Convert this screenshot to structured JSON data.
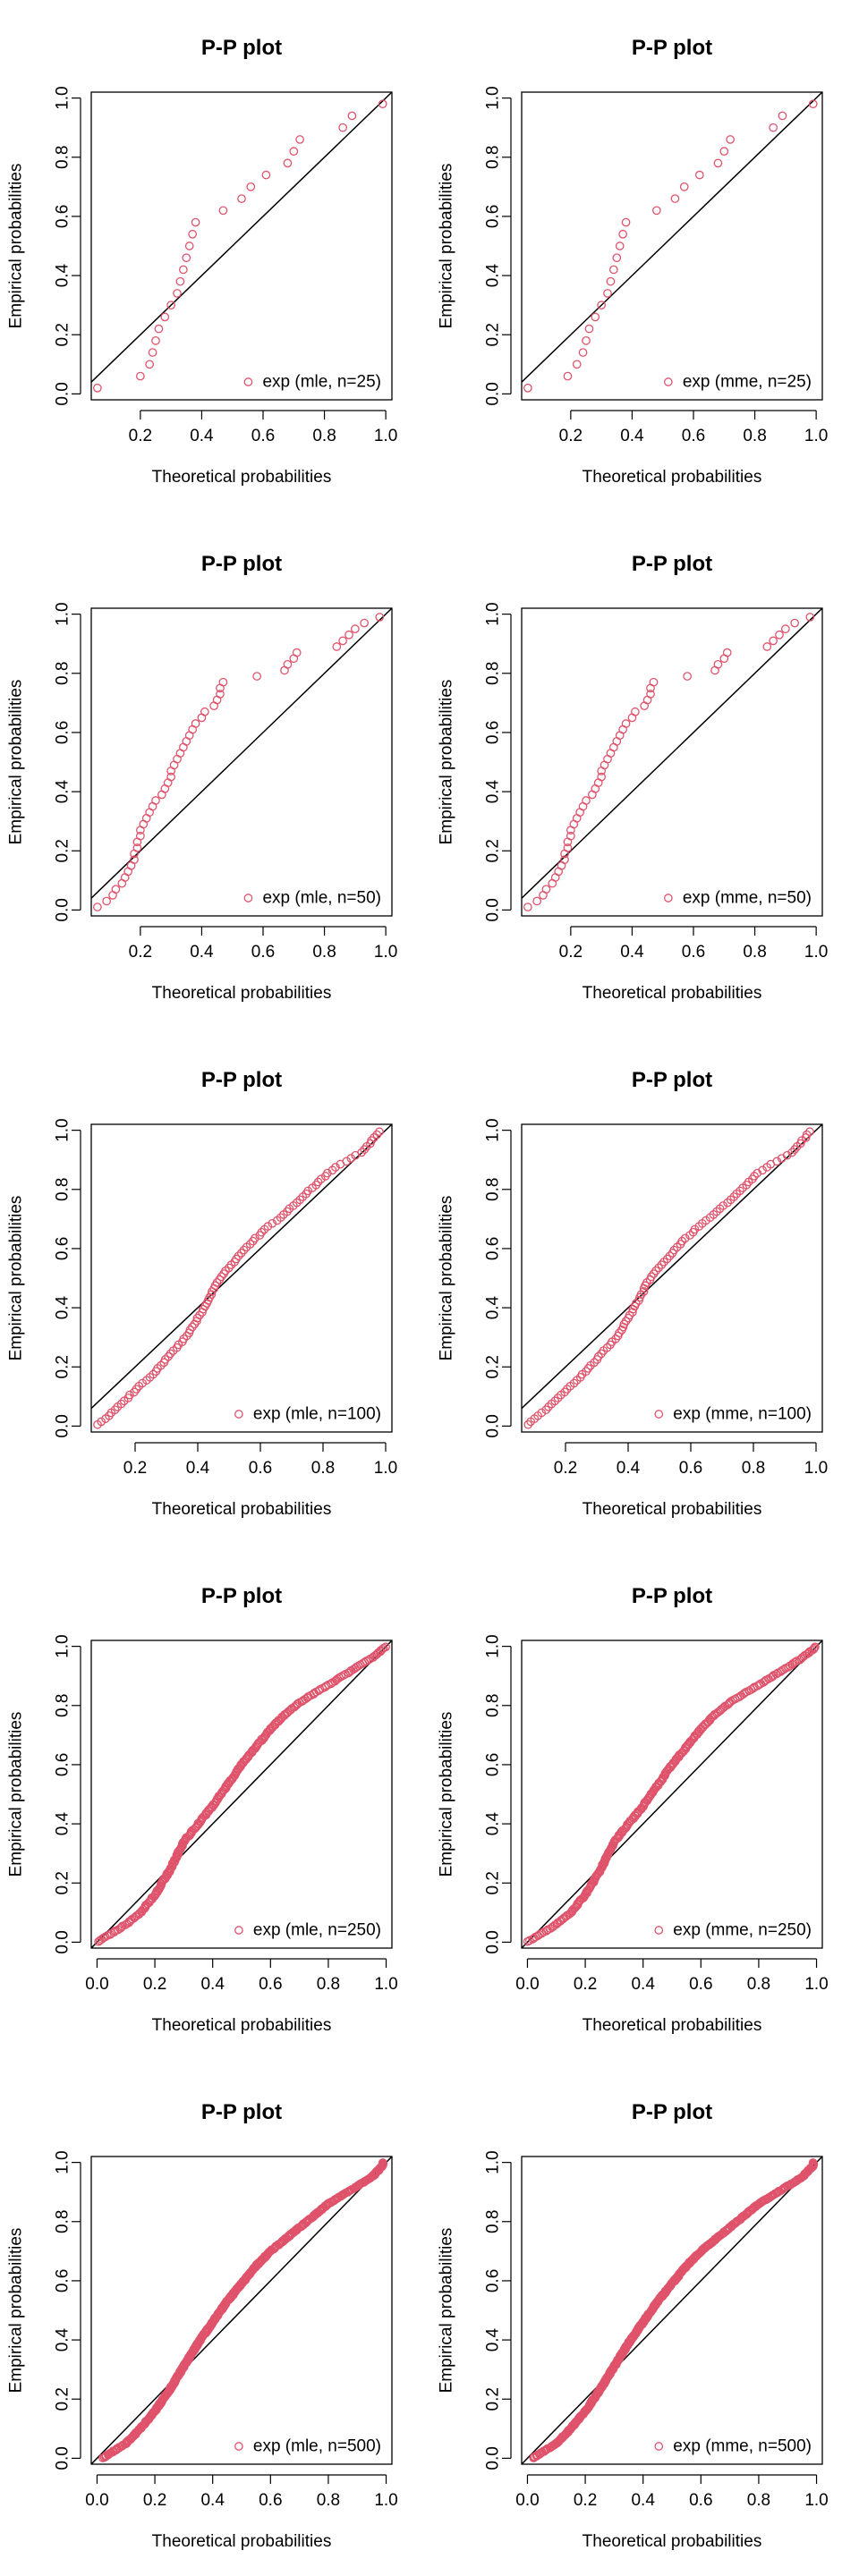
{
  "colors": {
    "points": "#df536b",
    "line": "#000000",
    "frame": "#000000"
  },
  "chart_data": [
    {
      "type": "scatter",
      "title": "P-P plot",
      "xlabel": "Theoretical probabilities",
      "ylabel": "Empirical probabilities",
      "xlim": [
        0.04,
        1.02
      ],
      "ylim": [
        -0.02,
        1.02
      ],
      "xticks": [
        "0.2",
        "0.4",
        "0.6",
        "0.8",
        "1.0"
      ],
      "yticks": [
        "0.0",
        "0.2",
        "0.4",
        "0.6",
        "0.8",
        "1.0"
      ],
      "legend": "exp (mle, n=25)",
      "legend_position": "bottom-right",
      "reference_line": "y = x",
      "n": 25,
      "x": [
        0.06,
        0.2,
        0.23,
        0.24,
        0.25,
        0.26,
        0.28,
        0.3,
        0.32,
        0.33,
        0.34,
        0.35,
        0.36,
        0.37,
        0.38,
        0.47,
        0.53,
        0.56,
        0.61,
        0.68,
        0.7,
        0.72,
        0.86,
        0.89,
        0.99
      ],
      "y": [
        0.02,
        0.06,
        0.1,
        0.14,
        0.18,
        0.22,
        0.26,
        0.3,
        0.34,
        0.38,
        0.42,
        0.46,
        0.5,
        0.54,
        0.58,
        0.62,
        0.66,
        0.7,
        0.74,
        0.78,
        0.82,
        0.86,
        0.9,
        0.94,
        0.98
      ]
    },
    {
      "type": "scatter",
      "title": "P-P plot",
      "xlabel": "Theoretical probabilities",
      "ylabel": "Empirical probabilities",
      "xlim": [
        0.04,
        1.02
      ],
      "ylim": [
        -0.02,
        1.02
      ],
      "xticks": [
        "0.2",
        "0.4",
        "0.6",
        "0.8",
        "1.0"
      ],
      "yticks": [
        "0.0",
        "0.2",
        "0.4",
        "0.6",
        "0.8",
        "1.0"
      ],
      "legend": "exp (mme, n=25)",
      "legend_position": "bottom-right",
      "reference_line": "y = x",
      "n": 25,
      "x": [
        0.06,
        0.19,
        0.22,
        0.24,
        0.25,
        0.26,
        0.28,
        0.3,
        0.32,
        0.33,
        0.34,
        0.35,
        0.36,
        0.37,
        0.38,
        0.48,
        0.54,
        0.57,
        0.62,
        0.68,
        0.7,
        0.72,
        0.86,
        0.89,
        0.99
      ],
      "y": [
        0.02,
        0.06,
        0.1,
        0.14,
        0.18,
        0.22,
        0.26,
        0.3,
        0.34,
        0.38,
        0.42,
        0.46,
        0.5,
        0.54,
        0.58,
        0.62,
        0.66,
        0.7,
        0.74,
        0.78,
        0.82,
        0.86,
        0.9,
        0.94,
        0.98
      ]
    },
    {
      "type": "scatter",
      "title": "P-P plot",
      "xlabel": "Theoretical probabilities",
      "ylabel": "Empirical probabilities",
      "xlim": [
        0.04,
        1.02
      ],
      "ylim": [
        -0.02,
        1.02
      ],
      "xticks": [
        "0.2",
        "0.4",
        "0.6",
        "0.8",
        "1.0"
      ],
      "yticks": [
        "0.0",
        "0.2",
        "0.4",
        "0.6",
        "0.8",
        "1.0"
      ],
      "legend": "exp (mle, n=50)",
      "legend_position": "bottom-right",
      "reference_line": "y = x",
      "n": 50,
      "x": [
        0.06,
        0.09,
        0.11,
        0.12,
        0.14,
        0.15,
        0.16,
        0.17,
        0.18,
        0.18,
        0.19,
        0.19,
        0.2,
        0.2,
        0.21,
        0.22,
        0.23,
        0.24,
        0.25,
        0.27,
        0.28,
        0.29,
        0.3,
        0.3,
        0.31,
        0.32,
        0.33,
        0.34,
        0.35,
        0.36,
        0.37,
        0.38,
        0.4,
        0.41,
        0.44,
        0.45,
        0.46,
        0.46,
        0.47,
        0.58,
        0.67,
        0.68,
        0.7,
        0.71,
        0.84,
        0.86,
        0.88,
        0.9,
        0.93,
        0.98
      ],
      "y": [
        0.01,
        0.03,
        0.05,
        0.07,
        0.09,
        0.11,
        0.13,
        0.15,
        0.17,
        0.19,
        0.21,
        0.23,
        0.25,
        0.27,
        0.29,
        0.31,
        0.33,
        0.35,
        0.37,
        0.39,
        0.41,
        0.43,
        0.45,
        0.47,
        0.49,
        0.51,
        0.53,
        0.55,
        0.57,
        0.59,
        0.61,
        0.63,
        0.65,
        0.67,
        0.69,
        0.71,
        0.73,
        0.75,
        0.77,
        0.79,
        0.81,
        0.83,
        0.85,
        0.87,
        0.89,
        0.91,
        0.93,
        0.95,
        0.97,
        0.99
      ]
    },
    {
      "type": "scatter",
      "title": "P-P plot",
      "xlabel": "Theoretical probabilities",
      "ylabel": "Empirical probabilities",
      "xlim": [
        0.04,
        1.02
      ],
      "ylim": [
        -0.02,
        1.02
      ],
      "xticks": [
        "0.2",
        "0.4",
        "0.6",
        "0.8",
        "1.0"
      ],
      "yticks": [
        "0.0",
        "0.2",
        "0.4",
        "0.6",
        "0.8",
        "1.0"
      ],
      "legend": "exp (mme, n=50)",
      "legend_position": "bottom-right",
      "reference_line": "y = x",
      "n": 50,
      "x": [
        0.06,
        0.09,
        0.11,
        0.12,
        0.14,
        0.15,
        0.16,
        0.17,
        0.18,
        0.18,
        0.19,
        0.19,
        0.2,
        0.2,
        0.21,
        0.22,
        0.23,
        0.24,
        0.25,
        0.27,
        0.28,
        0.29,
        0.3,
        0.3,
        0.31,
        0.32,
        0.33,
        0.34,
        0.35,
        0.36,
        0.37,
        0.38,
        0.4,
        0.41,
        0.44,
        0.45,
        0.46,
        0.46,
        0.47,
        0.58,
        0.67,
        0.68,
        0.7,
        0.71,
        0.84,
        0.86,
        0.88,
        0.9,
        0.93,
        0.98
      ],
      "y": [
        0.01,
        0.03,
        0.05,
        0.07,
        0.09,
        0.11,
        0.13,
        0.15,
        0.17,
        0.19,
        0.21,
        0.23,
        0.25,
        0.27,
        0.29,
        0.31,
        0.33,
        0.35,
        0.37,
        0.39,
        0.41,
        0.43,
        0.45,
        0.47,
        0.49,
        0.51,
        0.53,
        0.55,
        0.57,
        0.59,
        0.61,
        0.63,
        0.65,
        0.67,
        0.69,
        0.71,
        0.73,
        0.75,
        0.77,
        0.79,
        0.81,
        0.83,
        0.85,
        0.87,
        0.89,
        0.91,
        0.93,
        0.95,
        0.97,
        0.99
      ]
    },
    {
      "type": "scatter",
      "title": "P-P plot",
      "xlabel": "Theoretical probabilities",
      "ylabel": "Empirical probabilities",
      "xlim": [
        0.06,
        1.02
      ],
      "ylim": [
        -0.02,
        1.02
      ],
      "xticks": [
        "0.2",
        "0.4",
        "0.6",
        "0.8",
        "1.0"
      ],
      "yticks": [
        "0.0",
        "0.2",
        "0.4",
        "0.6",
        "0.8",
        "1.0"
      ],
      "legend": "exp (mle, n=100)",
      "legend_position": "bottom-right",
      "reference_line": "y = x",
      "n": 100,
      "curve": {
        "x": [
          0.08,
          0.12,
          0.17,
          0.22,
          0.27,
          0.32,
          0.37,
          0.42,
          0.47,
          0.52,
          0.57,
          0.62,
          0.67,
          0.72,
          0.77,
          0.82,
          0.88,
          0.93,
          0.98
        ],
        "y": [
          0.005,
          0.04,
          0.09,
          0.14,
          0.19,
          0.25,
          0.31,
          0.4,
          0.5,
          0.56,
          0.62,
          0.67,
          0.71,
          0.76,
          0.81,
          0.86,
          0.9,
          0.93,
          0.995
        ]
      }
    },
    {
      "type": "scatter",
      "title": "P-P plot",
      "xlabel": "Theoretical probabilities",
      "ylabel": "Empirical probabilities",
      "xlim": [
        0.06,
        1.02
      ],
      "ylim": [
        -0.02,
        1.02
      ],
      "xticks": [
        "0.2",
        "0.4",
        "0.6",
        "0.8",
        "1.0"
      ],
      "yticks": [
        "0.0",
        "0.2",
        "0.4",
        "0.6",
        "0.8",
        "1.0"
      ],
      "legend": "exp (mme, n=100)",
      "legend_position": "bottom-right",
      "reference_line": "y = x",
      "n": 100,
      "curve": {
        "x": [
          0.08,
          0.12,
          0.17,
          0.22,
          0.27,
          0.32,
          0.37,
          0.42,
          0.47,
          0.52,
          0.57,
          0.62,
          0.67,
          0.72,
          0.77,
          0.82,
          0.88,
          0.93,
          0.98
        ],
        "y": [
          0.005,
          0.04,
          0.09,
          0.14,
          0.19,
          0.25,
          0.31,
          0.4,
          0.5,
          0.56,
          0.62,
          0.67,
          0.71,
          0.76,
          0.81,
          0.86,
          0.9,
          0.93,
          0.995
        ]
      }
    },
    {
      "type": "scatter",
      "title": "P-P plot",
      "xlabel": "Theoretical probabilities",
      "ylabel": "Empirical probabilities",
      "xlim": [
        -0.02,
        1.02
      ],
      "ylim": [
        -0.02,
        1.02
      ],
      "xticks": [
        "0.0",
        "0.2",
        "0.4",
        "0.6",
        "0.8",
        "1.0"
      ],
      "yticks": [
        "0.0",
        "0.2",
        "0.4",
        "0.6",
        "0.8",
        "1.0"
      ],
      "legend": "exp (mle, n=250)",
      "legend_position": "bottom-right",
      "reference_line": "y = x",
      "n": 250,
      "curve": {
        "x": [
          0.0,
          0.05,
          0.1,
          0.15,
          0.2,
          0.25,
          0.3,
          0.35,
          0.4,
          0.45,
          0.5,
          0.55,
          0.6,
          0.65,
          0.7,
          0.75,
          0.8,
          0.85,
          0.9,
          0.95,
          1.0
        ],
        "y": [
          0.0,
          0.03,
          0.06,
          0.1,
          0.16,
          0.24,
          0.34,
          0.4,
          0.46,
          0.53,
          0.6,
          0.66,
          0.72,
          0.77,
          0.81,
          0.84,
          0.87,
          0.9,
          0.93,
          0.96,
          1.0
        ]
      }
    },
    {
      "type": "scatter",
      "title": "P-P plot",
      "xlabel": "Theoretical probabilities",
      "ylabel": "Empirical probabilities",
      "xlim": [
        -0.02,
        1.02
      ],
      "ylim": [
        -0.02,
        1.02
      ],
      "xticks": [
        "0.0",
        "0.2",
        "0.4",
        "0.6",
        "0.8",
        "1.0"
      ],
      "yticks": [
        "0.0",
        "0.2",
        "0.4",
        "0.6",
        "0.8",
        "1.0"
      ],
      "legend": "exp (mme, n=250)",
      "legend_position": "bottom-right",
      "reference_line": "y = x",
      "n": 250,
      "curve": {
        "x": [
          0.0,
          0.05,
          0.1,
          0.15,
          0.2,
          0.25,
          0.3,
          0.35,
          0.4,
          0.45,
          0.5,
          0.55,
          0.6,
          0.65,
          0.7,
          0.75,
          0.8,
          0.85,
          0.9,
          0.95,
          1.0
        ],
        "y": [
          0.0,
          0.03,
          0.06,
          0.1,
          0.16,
          0.24,
          0.34,
          0.4,
          0.46,
          0.53,
          0.6,
          0.66,
          0.72,
          0.77,
          0.81,
          0.84,
          0.87,
          0.9,
          0.93,
          0.96,
          1.0
        ]
      }
    },
    {
      "type": "scatter",
      "title": "P-P plot",
      "xlabel": "Theoretical probabilities",
      "ylabel": "Empirical probabilities",
      "xlim": [
        -0.02,
        1.02
      ],
      "ylim": [
        -0.02,
        1.02
      ],
      "xticks": [
        "0.0",
        "0.2",
        "0.4",
        "0.6",
        "0.8",
        "1.0"
      ],
      "yticks": [
        "0.0",
        "0.2",
        "0.4",
        "0.6",
        "0.8",
        "1.0"
      ],
      "legend": "exp (mle, n=500)",
      "legend_position": "bottom-right",
      "reference_line": "y = x",
      "n": 500,
      "curve": {
        "x": [
          0.02,
          0.05,
          0.1,
          0.15,
          0.2,
          0.25,
          0.3,
          0.35,
          0.4,
          0.45,
          0.5,
          0.55,
          0.6,
          0.65,
          0.7,
          0.75,
          0.8,
          0.85,
          0.9,
          0.95,
          0.99
        ],
        "y": [
          0.0,
          0.02,
          0.05,
          0.1,
          0.16,
          0.23,
          0.31,
          0.39,
          0.46,
          0.53,
          0.59,
          0.65,
          0.7,
          0.74,
          0.78,
          0.82,
          0.86,
          0.89,
          0.92,
          0.95,
          0.99
        ]
      }
    },
    {
      "type": "scatter",
      "title": "P-P plot",
      "xlabel": "Theoretical probabilities",
      "ylabel": "Empirical probabilities",
      "xlim": [
        -0.02,
        1.02
      ],
      "ylim": [
        -0.02,
        1.02
      ],
      "xticks": [
        "0.0",
        "0.2",
        "0.4",
        "0.6",
        "0.8",
        "1.0"
      ],
      "yticks": [
        "0.0",
        "0.2",
        "0.4",
        "0.6",
        "0.8",
        "1.0"
      ],
      "legend": "exp (mme, n=500)",
      "legend_position": "bottom-right",
      "reference_line": "y = x",
      "n": 500,
      "curve": {
        "x": [
          0.02,
          0.05,
          0.1,
          0.15,
          0.2,
          0.25,
          0.3,
          0.35,
          0.4,
          0.45,
          0.5,
          0.55,
          0.6,
          0.65,
          0.7,
          0.75,
          0.8,
          0.85,
          0.9,
          0.95,
          0.99
        ],
        "y": [
          0.0,
          0.02,
          0.05,
          0.1,
          0.16,
          0.23,
          0.31,
          0.39,
          0.46,
          0.53,
          0.59,
          0.65,
          0.7,
          0.74,
          0.78,
          0.82,
          0.86,
          0.89,
          0.92,
          0.95,
          0.99
        ]
      }
    }
  ]
}
